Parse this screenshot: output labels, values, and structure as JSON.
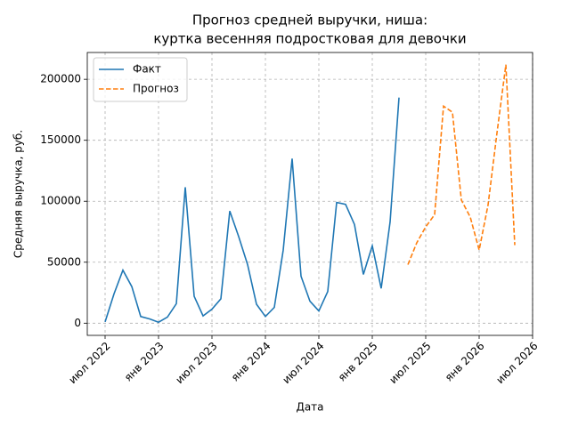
{
  "chart_data": {
    "type": "line",
    "title": [
      "Прогноз средней выручки, ниша:",
      "куртка весенняя подростковая для девочки"
    ],
    "xlabel": "Дата",
    "ylabel": "Средняя выручка, руб.",
    "x": [
      "2022-07",
      "2022-08",
      "2022-09",
      "2022-10",
      "2022-11",
      "2022-12",
      "2023-01",
      "2023-02",
      "2023-03",
      "2023-04",
      "2023-05",
      "2023-06",
      "2023-07",
      "2023-08",
      "2023-09",
      "2023-10",
      "2023-11",
      "2023-12",
      "2024-01",
      "2024-02",
      "2024-03",
      "2024-04",
      "2024-05",
      "2024-06",
      "2024-07",
      "2024-08",
      "2024-09",
      "2024-10",
      "2024-11",
      "2024-12",
      "2025-01",
      "2025-02",
      "2025-03",
      "2025-04",
      "2025-05",
      "2025-06",
      "2025-07",
      "2025-08",
      "2025-09",
      "2025-10",
      "2025-11",
      "2025-12",
      "2026-01",
      "2026-02",
      "2026-03",
      "2026-04",
      "2026-05"
    ],
    "series": [
      {
        "name": "Факт",
        "color": "#1f77b4",
        "linestyle": "solid",
        "values": [
          1000,
          24000,
          43500,
          30000,
          5500,
          3500,
          800,
          5000,
          16000,
          111500,
          22000,
          6000,
          11500,
          20000,
          92000,
          71000,
          48000,
          15500,
          5500,
          13000,
          60000,
          135000,
          38500,
          18000,
          10000,
          26000,
          99000,
          97500,
          81000,
          40000,
          63500,
          28500,
          83000,
          185000,
          null,
          null,
          null,
          null,
          null,
          null,
          null,
          null,
          null,
          null,
          null,
          null,
          null
        ]
      },
      {
        "name": "Прогноз",
        "color": "#ff7f0e",
        "linestyle": "dashed",
        "values": [
          null,
          null,
          null,
          null,
          null,
          null,
          null,
          null,
          null,
          null,
          null,
          null,
          null,
          null,
          null,
          null,
          null,
          null,
          null,
          null,
          null,
          null,
          null,
          null,
          null,
          null,
          null,
          null,
          null,
          null,
          null,
          null,
          null,
          null,
          48000,
          66000,
          79000,
          89000,
          178000,
          173000,
          101000,
          87000,
          60000,
          97000,
          156000,
          212000,
          64000
        ]
      }
    ],
    "xlim": [
      "2022-05",
      "2026-07"
    ],
    "xticks": [
      {
        "value": "2022-07",
        "label": "июл 2022"
      },
      {
        "value": "2023-01",
        "label": "янв 2023"
      },
      {
        "value": "2023-07",
        "label": "июл 2023"
      },
      {
        "value": "2024-01",
        "label": "янв 2024"
      },
      {
        "value": "2024-07",
        "label": "июл 2024"
      },
      {
        "value": "2025-01",
        "label": "янв 2025"
      },
      {
        "value": "2025-07",
        "label": "июл 2025"
      },
      {
        "value": "2026-01",
        "label": "янв 2026"
      },
      {
        "value": "2026-07",
        "label": "июл 2026"
      }
    ],
    "ylim": [
      -10000,
      222000
    ],
    "yticks": [
      0,
      50000,
      100000,
      150000,
      200000
    ],
    "grid": true,
    "legend": "upper left"
  }
}
